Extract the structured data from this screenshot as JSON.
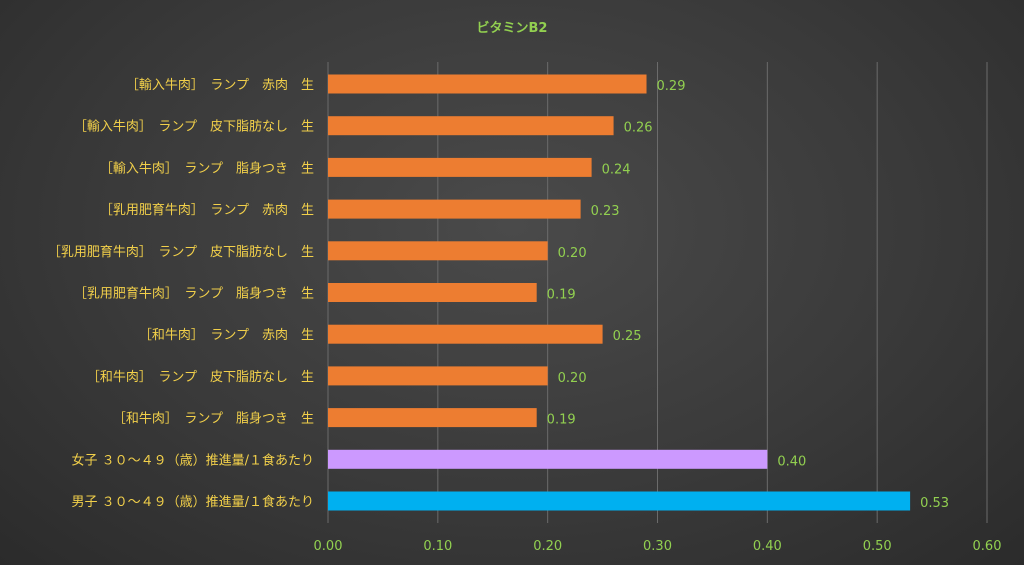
{
  "chart_data": {
    "type": "bar",
    "orientation": "horizontal",
    "title": "ビタミンB2",
    "xlabel": "",
    "ylabel": "",
    "xlim": [
      0,
      0.6
    ],
    "x_ticks": [
      "0.00",
      "0.10",
      "0.20",
      "0.30",
      "0.40",
      "0.50",
      "0.60"
    ],
    "grid": true,
    "categories": [
      "［輸入牛肉］　ランプ　赤肉　生",
      "［輸入牛肉］　ランプ　皮下脂肪なし　生",
      "［輸入牛肉］　ランプ　脂身つき　生",
      "［乳用肥育牛肉］　ランプ　赤肉　生",
      "［乳用肥育牛肉］　ランプ　皮下脂肪なし　生",
      "［乳用肥育牛肉］　ランプ　脂身つき　生",
      "［和牛肉］　ランプ　赤肉　生",
      "［和牛肉］　ランプ　皮下脂肪なし　生",
      "［和牛肉］　ランプ　脂身つき　生",
      "女子 ３０～４９（歳）推進量/１食あたり",
      "男子 ３０～４９（歳）推進量/１食あたり"
    ],
    "values": [
      0.29,
      0.26,
      0.24,
      0.23,
      0.2,
      0.19,
      0.25,
      0.2,
      0.19,
      0.4,
      0.53
    ],
    "value_labels": [
      "0.29",
      "0.26",
      "0.24",
      "0.23",
      "0.20",
      "0.19",
      "0.25",
      "0.20",
      "0.19",
      "0.40",
      "0.53"
    ],
    "bar_colors": [
      "#ed7d31",
      "#ed7d31",
      "#ed7d31",
      "#ed7d31",
      "#ed7d31",
      "#ed7d31",
      "#ed7d31",
      "#ed7d31",
      "#ed7d31",
      "#cc99ff",
      "#00b0f0"
    ]
  }
}
